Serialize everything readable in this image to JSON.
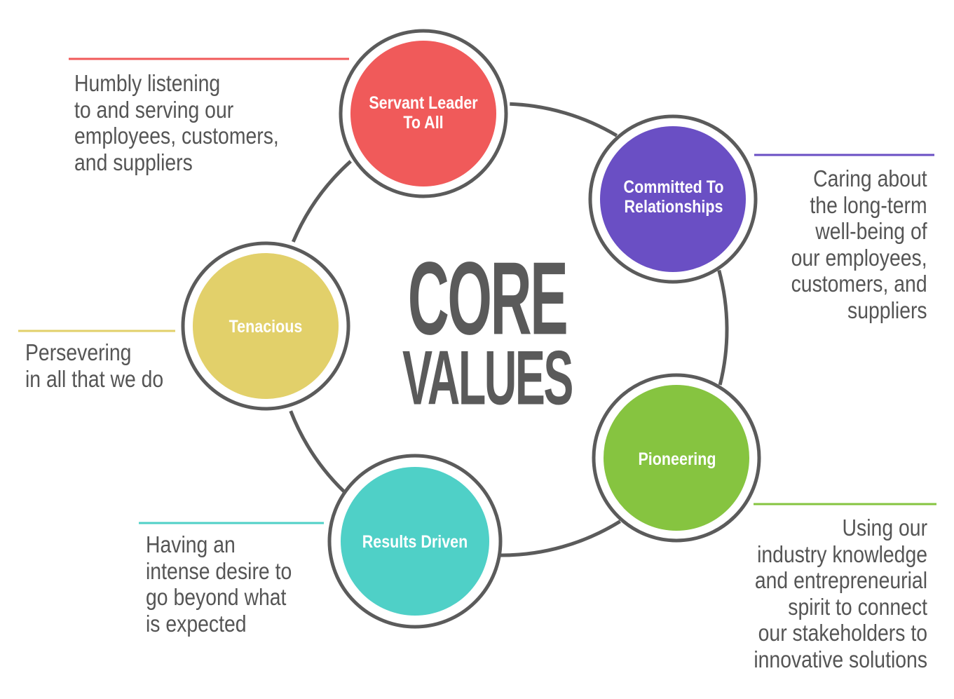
{
  "title": {
    "line1": "CORE",
    "line2": "VALUES"
  },
  "colors": {
    "ring": "#5b5b5b",
    "text": "#555555",
    "servant": "#f05a5a",
    "committed": "#6a4fc4",
    "pioneering": "#86c440",
    "results": "#4fd0c7",
    "tenacious": "#e2d06a"
  },
  "values": [
    {
      "key": "servant",
      "label": "Servant Leader\nTo All",
      "description": "Humbly listening\nto and serving our\nemployees, customers,\nand suppliers",
      "color": "#f05a5a"
    },
    {
      "key": "committed",
      "label": "Committed To\nRelationships",
      "description": "Caring about\nthe long-term\nwell-being of\nour employees,\ncustomers, and\nsuppliers",
      "color": "#6a4fc4"
    },
    {
      "key": "pioneering",
      "label": "Pioneering",
      "description": "Using our\nindustry knowledge\nand entrepreneurial\nspirit to connect\nour stakeholders to\ninnovative solutions",
      "color": "#86c440"
    },
    {
      "key": "results",
      "label": "Results Driven",
      "description": "Having an\nintense desire to\ngo beyond what\nis expected",
      "color": "#4fd0c7"
    },
    {
      "key": "tenacious",
      "label": "Tenacious",
      "description": "Persevering\nin all that we do",
      "color": "#e2d06a"
    }
  ]
}
